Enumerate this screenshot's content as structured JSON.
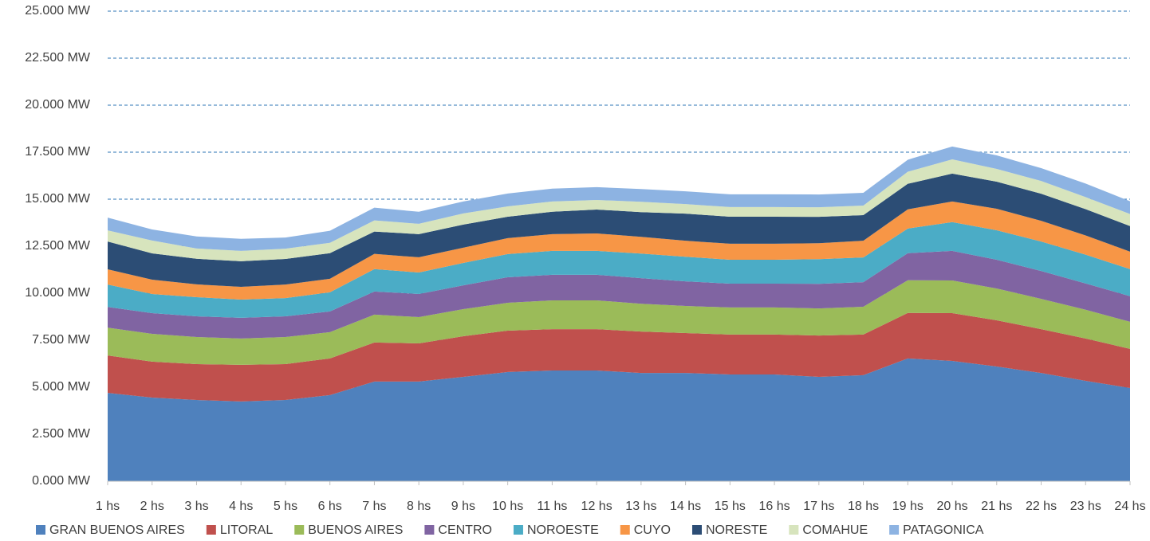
{
  "chart_data": {
    "type": "stacked-area",
    "categories": [
      "1 hs",
      "2 hs",
      "3 hs",
      "4 hs",
      "5 hs",
      "6 hs",
      "7 hs",
      "8 hs",
      "9 hs",
      "10 hs",
      "11 hs",
      "12 hs",
      "13 hs",
      "14 hs",
      "15 hs",
      "16 hs",
      "17 hs",
      "18 hs",
      "19 hs",
      "20 hs",
      "21 hs",
      "22 hs",
      "23 hs",
      "24 hs"
    ],
    "ylim": [
      0,
      25000
    ],
    "yticks": [
      {
        "value": 0,
        "label": "0.000 MW"
      },
      {
        "value": 2500,
        "label": "2.500 MW"
      },
      {
        "value": 5000,
        "label": "5.000 MW"
      },
      {
        "value": 7500,
        "label": "7.500 MW"
      },
      {
        "value": 10000,
        "label": "10.000 MW"
      },
      {
        "value": 12500,
        "label": "12.500 MW"
      },
      {
        "value": 15000,
        "label": "15.000 MW"
      },
      {
        "value": 17500,
        "label": "17.500 MW"
      },
      {
        "value": 20000,
        "label": "20.000 MW"
      },
      {
        "value": 22500,
        "label": "22.500 MW"
      },
      {
        "value": 25000,
        "label": "25.000 MW"
      }
    ],
    "grid": true,
    "legend": "bottom",
    "series": [
      {
        "name": "GRAN BUENOS AIRES",
        "color": "#4f81bd",
        "values": [
          4700,
          4450,
          4320,
          4240,
          4320,
          4580,
          5300,
          5300,
          5550,
          5810,
          5890,
          5890,
          5760,
          5760,
          5680,
          5680,
          5550,
          5640,
          6530,
          6400,
          6100,
          5760,
          5340,
          4960
        ]
      },
      {
        "name": "LITORAL",
        "color": "#c0504d",
        "values": [
          1990,
          1910,
          1910,
          1950,
          1910,
          1950,
          2080,
          2030,
          2160,
          2200,
          2200,
          2200,
          2200,
          2120,
          2120,
          2120,
          2200,
          2160,
          2420,
          2540,
          2460,
          2330,
          2250,
          2080
        ]
      },
      {
        "name": "BUENOS AIRES",
        "color": "#9bbb59",
        "values": [
          1480,
          1480,
          1440,
          1400,
          1440,
          1400,
          1480,
          1400,
          1440,
          1480,
          1530,
          1530,
          1480,
          1440,
          1440,
          1440,
          1440,
          1480,
          1740,
          1740,
          1690,
          1610,
          1530,
          1440
        ]
      },
      {
        "name": "CENTRO",
        "color": "#8064a2",
        "values": [
          1100,
          1100,
          1100,
          1100,
          1100,
          1100,
          1230,
          1230,
          1270,
          1360,
          1360,
          1360,
          1360,
          1310,
          1270,
          1270,
          1310,
          1310,
          1440,
          1570,
          1530,
          1480,
          1400,
          1360
        ]
      },
      {
        "name": "NOROESTE",
        "color": "#4bacc6",
        "values": [
          1190,
          1020,
          1020,
          970,
          970,
          1020,
          1190,
          1140,
          1190,
          1230,
          1270,
          1270,
          1310,
          1310,
          1270,
          1270,
          1310,
          1310,
          1310,
          1530,
          1570,
          1570,
          1530,
          1440
        ]
      },
      {
        "name": "CUYO",
        "color": "#f79646",
        "values": [
          810,
          760,
          680,
          680,
          720,
          720,
          810,
          810,
          810,
          850,
          890,
          930,
          890,
          850,
          850,
          850,
          850,
          890,
          1020,
          1100,
          1140,
          1100,
          1020,
          930
        ]
      },
      {
        "name": "NORESTE",
        "color": "#2c4d75",
        "values": [
          1480,
          1400,
          1360,
          1360,
          1360,
          1360,
          1190,
          1230,
          1230,
          1140,
          1190,
          1270,
          1310,
          1440,
          1440,
          1440,
          1400,
          1360,
          1360,
          1480,
          1440,
          1440,
          1400,
          1360
        ]
      },
      {
        "name": "COMAHUE",
        "color": "#d7e4bd",
        "values": [
          590,
          680,
          550,
          550,
          550,
          550,
          590,
          550,
          590,
          550,
          550,
          510,
          550,
          510,
          510,
          510,
          510,
          510,
          640,
          760,
          680,
          680,
          640,
          640
        ]
      },
      {
        "name": "PATAGONICA",
        "color": "#8db3e2",
        "values": [
          680,
          590,
          640,
          640,
          590,
          640,
          680,
          640,
          640,
          680,
          680,
          680,
          680,
          680,
          680,
          680,
          680,
          680,
          640,
          680,
          720,
          680,
          720,
          680
        ]
      }
    ]
  }
}
